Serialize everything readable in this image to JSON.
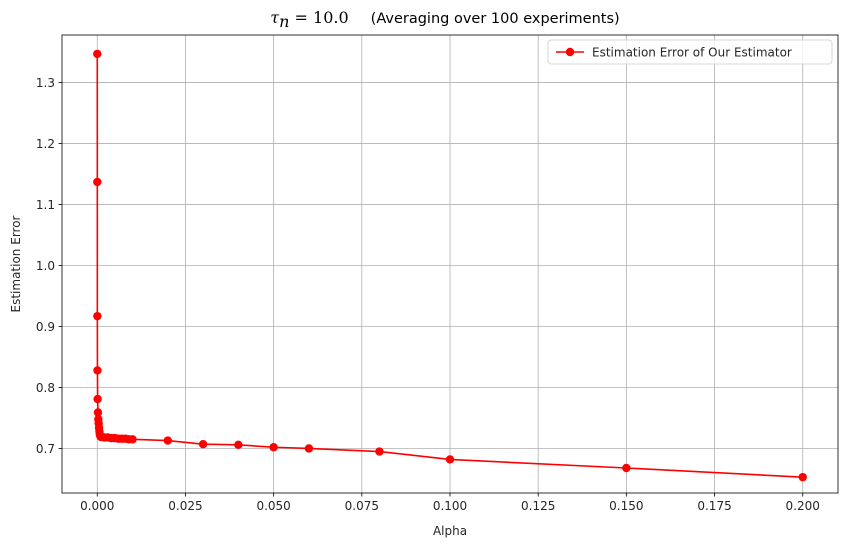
{
  "chart_data": {
    "type": "line",
    "title": {
      "math_symbol": "τ",
      "math_subscript": "n",
      "math_rest": " = 10.0",
      "text": "(Averaging over 100 experiments)"
    },
    "xlabel": "Alpha",
    "ylabel": "Estimation Error",
    "xlim": [
      -0.01,
      0.21
    ],
    "ylim": [
      0.627,
      1.378
    ],
    "xticks": [
      0.0,
      0.025,
      0.05,
      0.075,
      0.1,
      0.125,
      0.15,
      0.175,
      0.2
    ],
    "xtick_labels": [
      "0.000",
      "0.025",
      "0.050",
      "0.075",
      "0.100",
      "0.125",
      "0.150",
      "0.175",
      "0.200"
    ],
    "yticks": [
      0.7,
      0.8,
      0.9,
      1.0,
      1.1,
      1.2,
      1.3
    ],
    "ytick_labels": [
      "0.7",
      "0.8",
      "0.9",
      "1.0",
      "1.1",
      "1.2",
      "1.3"
    ],
    "grid": true,
    "legend_position": "upper-right",
    "series": [
      {
        "name": "Estimation Error of Our Estimator",
        "color": "#ff0000",
        "marker": "circle",
        "points": [
          {
            "x": 0.0,
            "y": 1.347
          },
          {
            "x": 1e-05,
            "y": 1.137
          },
          {
            "x": 2e-05,
            "y": 0.917
          },
          {
            "x": 5e-05,
            "y": 0.828
          },
          {
            "x": 0.0001,
            "y": 0.781
          },
          {
            "x": 0.0002,
            "y": 0.759
          },
          {
            "x": 0.0003,
            "y": 0.748
          },
          {
            "x": 0.0004,
            "y": 0.741
          },
          {
            "x": 0.0005,
            "y": 0.734
          },
          {
            "x": 0.0006,
            "y": 0.728
          },
          {
            "x": 0.0007,
            "y": 0.724
          },
          {
            "x": 0.0008,
            "y": 0.721
          },
          {
            "x": 0.001,
            "y": 0.719
          },
          {
            "x": 0.002,
            "y": 0.718
          },
          {
            "x": 0.003,
            "y": 0.718
          },
          {
            "x": 0.004,
            "y": 0.717
          },
          {
            "x": 0.005,
            "y": 0.717
          },
          {
            "x": 0.006,
            "y": 0.716
          },
          {
            "x": 0.007,
            "y": 0.716
          },
          {
            "x": 0.008,
            "y": 0.716
          },
          {
            "x": 0.009,
            "y": 0.715
          },
          {
            "x": 0.01,
            "y": 0.715
          },
          {
            "x": 0.02,
            "y": 0.713
          },
          {
            "x": 0.03,
            "y": 0.707
          },
          {
            "x": 0.04,
            "y": 0.706
          },
          {
            "x": 0.05,
            "y": 0.702
          },
          {
            "x": 0.06,
            "y": 0.7
          },
          {
            "x": 0.08,
            "y": 0.695
          },
          {
            "x": 0.1,
            "y": 0.682
          },
          {
            "x": 0.15,
            "y": 0.668
          },
          {
            "x": 0.2,
            "y": 0.653
          }
        ]
      }
    ]
  }
}
